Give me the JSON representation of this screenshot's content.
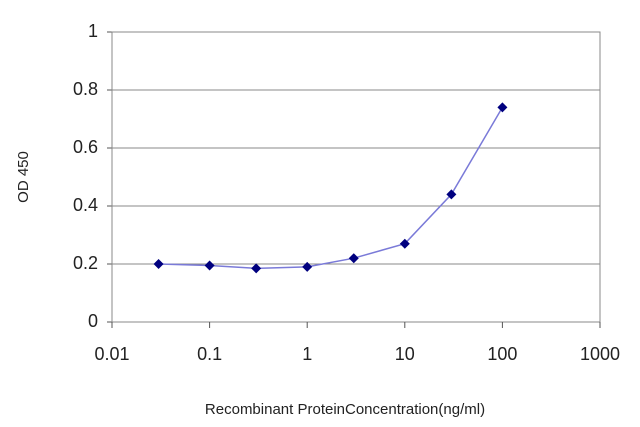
{
  "chart_data": {
    "type": "line",
    "x_label": "Recombinant ProteinConcentration(ng/ml)",
    "y_label": "OD 450",
    "x": [
      0.03,
      0.1,
      0.3,
      1,
      3,
      10,
      30,
      100
    ],
    "series": [
      {
        "color": "#00007f",
        "line_color": "#7a7ad8",
        "values": [
          0.2,
          0.195,
          0.185,
          0.19,
          0.22,
          0.27,
          0.44,
          0.74
        ]
      }
    ],
    "xscale": "log",
    "xlim": [
      0.01,
      1000
    ],
    "xticks": [
      0.01,
      0.1,
      1,
      10,
      100,
      1000
    ],
    "ylim": [
      0,
      1
    ],
    "yticks": [
      0,
      0.2,
      0.4,
      0.6,
      0.8,
      1
    ],
    "grid": true
  }
}
